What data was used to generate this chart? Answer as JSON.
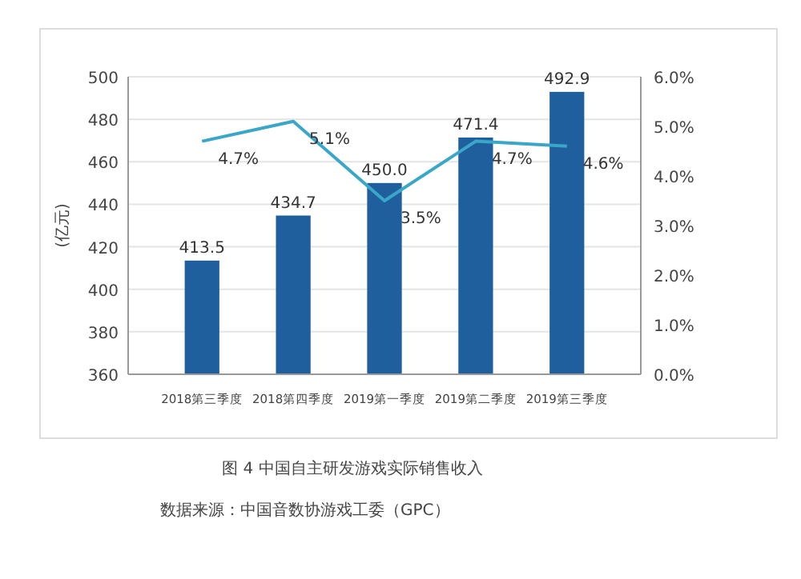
{
  "chart_data": {
    "type": "bar",
    "ylabel": "(亿元)",
    "categories": [
      "2018第三季度",
      "2018第四季度",
      "2019第一季度",
      "2019第二季度",
      "2019第三季度"
    ],
    "series": [
      {
        "color": "#1f5f9e",
        "values": [
          413.5,
          434.7,
          450.0,
          471.4,
          492.9
        ],
        "value_labels": [
          "413.5",
          "434.7",
          "450.0",
          "471.4",
          "492.9"
        ]
      },
      {
        "type": "line",
        "axis": "y2",
        "color": "#3aa6c8",
        "values": [
          4.7,
          5.1,
          3.5,
          4.7,
          4.6
        ],
        "value_labels": [
          "4.7%",
          "5.1%",
          "3.5%",
          "4.7%",
          "4.6%"
        ]
      }
    ],
    "ylim": [
      360,
      500
    ],
    "yticks": [
      360,
      380,
      400,
      420,
      440,
      460,
      480,
      500
    ],
    "y2lim": [
      0,
      6
    ],
    "y2ticks": [
      {
        "value": 0,
        "label": "0.0%"
      },
      {
        "value": 1,
        "label": "1.0%"
      },
      {
        "value": 2,
        "label": "2.0%"
      },
      {
        "value": 3,
        "label": "3.0%"
      },
      {
        "value": 4,
        "label": "4.0%"
      },
      {
        "value": 5,
        "label": "5.0%"
      },
      {
        "value": 6,
        "label": "6.0%"
      }
    ],
    "grid": "y",
    "marker": "none",
    "annotations": [
      "图 4  中国自主研发游戏实际销售收入",
      "数据来源：中国音数协游戏工委（GPC）"
    ]
  }
}
